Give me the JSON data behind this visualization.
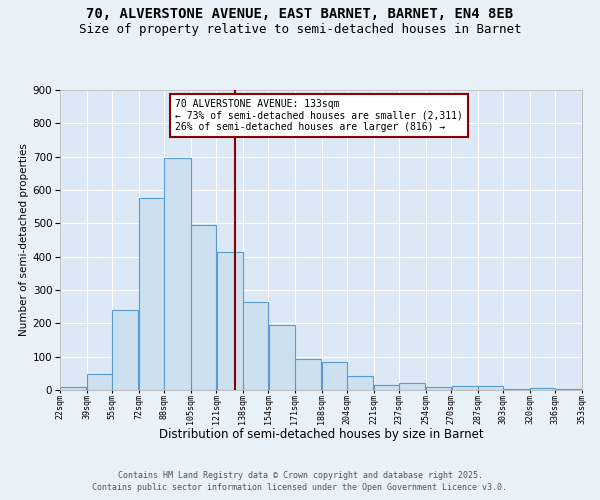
{
  "title1": "70, ALVERSTONE AVENUE, EAST BARNET, BARNET, EN4 8EB",
  "title2": "Size of property relative to semi-detached houses in Barnet",
  "xlabel": "Distribution of semi-detached houses by size in Barnet",
  "ylabel": "Number of semi-detached properties",
  "annotation_title": "70 ALVERSTONE AVENUE: 133sqm",
  "annotation_line1": "← 73% of semi-detached houses are smaller (2,311)",
  "annotation_line2": "26% of semi-detached houses are larger (816) →",
  "footer1": "Contains HM Land Registry data © Crown copyright and database right 2025.",
  "footer2": "Contains public sector information licensed under the Open Government Licence v3.0.",
  "property_size": 133,
  "bar_left_edges": [
    22,
    39,
    55,
    72,
    88,
    105,
    121,
    138,
    154,
    171,
    188,
    204,
    221,
    237,
    254,
    270,
    287,
    303,
    320,
    336
  ],
  "bar_widths": [
    17,
    16,
    17,
    16,
    17,
    16,
    17,
    16,
    17,
    17,
    16,
    17,
    16,
    17,
    16,
    17,
    16,
    17,
    16,
    17
  ],
  "bar_heights": [
    8,
    47,
    240,
    575,
    695,
    495,
    415,
    265,
    195,
    92,
    83,
    43,
    15,
    22,
    8,
    13,
    13,
    3,
    5,
    3
  ],
  "bar_color": "#cce0f0",
  "bar_edge_color": "#5b9bd5",
  "vline_x": 133,
  "vline_color": "#8b0000",
  "annotation_box_color": "#8b0000",
  "annotation_fill": "#ffffff",
  "tick_labels": [
    "22sqm",
    "39sqm",
    "55sqm",
    "72sqm",
    "88sqm",
    "105sqm",
    "121sqm",
    "138sqm",
    "154sqm",
    "171sqm",
    "188sqm",
    "204sqm",
    "221sqm",
    "237sqm",
    "254sqm",
    "270sqm",
    "287sqm",
    "303sqm",
    "320sqm",
    "336sqm",
    "353sqm"
  ],
  "ylim": [
    0,
    900
  ],
  "yticks": [
    0,
    100,
    200,
    300,
    400,
    500,
    600,
    700,
    800,
    900
  ],
  "bg_color": "#e8f0f8",
  "plot_bg_color": "#dce8f5",
  "grid_color": "#ffffff",
  "title_fontsize": 10,
  "subtitle_fontsize": 9
}
